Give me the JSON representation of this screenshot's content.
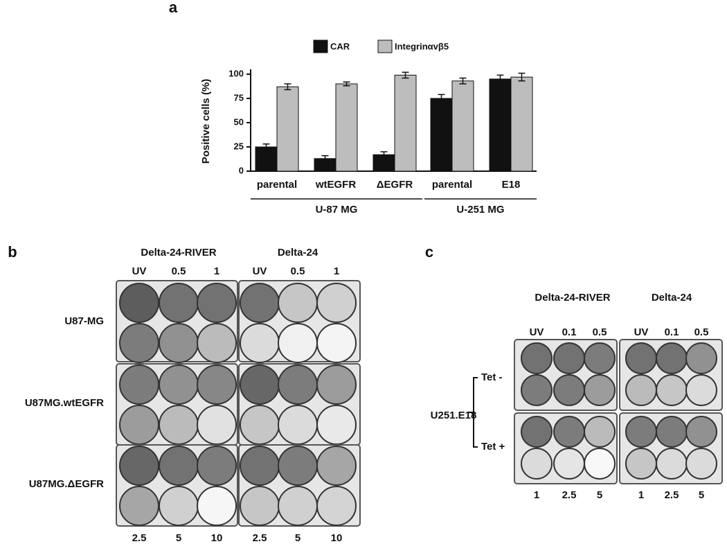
{
  "chart_data": {
    "type": "bar",
    "panel_label": "a",
    "y_label": "Positive cells (%)",
    "categories": [
      "parental",
      "wtEGFR",
      "ΔEGFR",
      "parental",
      "E18"
    ],
    "group_labels": [
      "U-87 MG",
      "U-251 MG"
    ],
    "group_sizes": [
      3,
      2
    ],
    "series": [
      {
        "name": "CAR",
        "color": "#111111",
        "values": [
          25,
          13,
          17,
          75,
          95
        ],
        "errors": [
          3,
          3,
          3,
          4,
          4
        ]
      },
      {
        "name": "Integrinαvβ5",
        "color": "#bdbdbd",
        "values": [
          87,
          90,
          99,
          93,
          97
        ],
        "errors": [
          3,
          2,
          3,
          3,
          4
        ]
      }
    ],
    "ylim": [
      0,
      105
    ],
    "yticks": [
      0,
      25,
      50,
      75,
      100
    ]
  },
  "panel_b": {
    "label": "b",
    "columns": [
      {
        "title": "Delta-24-RIVER",
        "top_doses": [
          "UV",
          "0.5",
          "1"
        ],
        "bottom_doses": [
          "2.5",
          "5",
          "10"
        ]
      },
      {
        "title": "Delta-24",
        "top_doses": [
          "UV",
          "0.5",
          "1"
        ],
        "bottom_doses": [
          "2.5",
          "5",
          "10"
        ]
      }
    ],
    "rows": [
      "U87-MG",
      "U87MG.wtEGFR",
      "U87MG.ΔEGFR"
    ]
  },
  "panel_c": {
    "label": "c",
    "cell_line": "U251.E18",
    "columns": [
      {
        "title": "Delta-24-RIVER",
        "top_doses": [
          "UV",
          "0.1",
          "0.5"
        ],
        "bottom_doses": [
          "1",
          "2.5",
          "5"
        ]
      },
      {
        "title": "Delta-24",
        "top_doses": [
          "UV",
          "0.1",
          "0.5"
        ],
        "bottom_doses": [
          "1",
          "2.5",
          "5"
        ]
      }
    ],
    "rows": [
      "Tet -",
      "Tet +"
    ]
  }
}
